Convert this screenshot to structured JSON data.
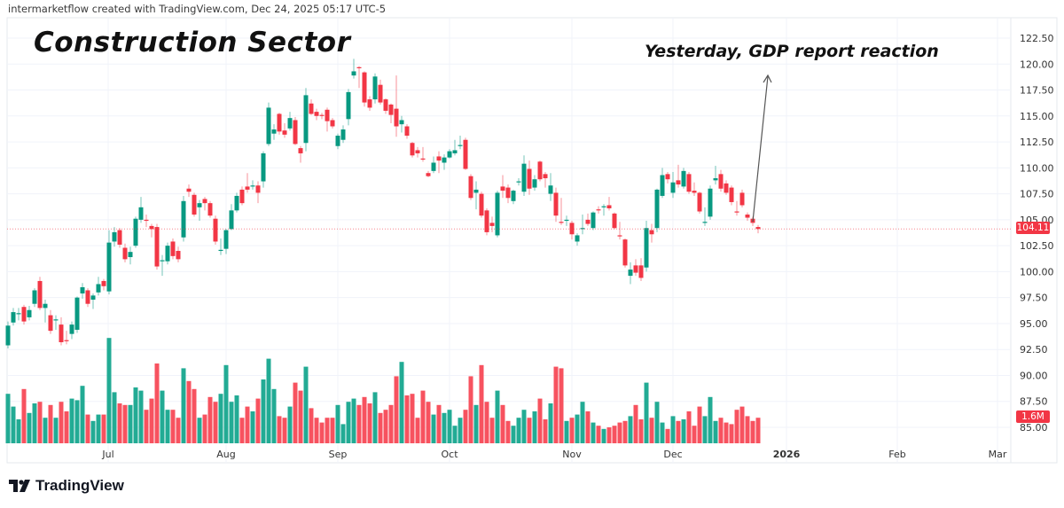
{
  "header": {
    "attribution": "intermarketflow created with TradingView.com, Dec 24, 2025 05:17 UTC-5"
  },
  "footer": {
    "logo_text": "TradingView"
  },
  "colors": {
    "up": "#089981",
    "down": "#f23645",
    "volume_up": "#22ab94",
    "volume_down": "#f7525f",
    "last_price_line": "#f23645",
    "annotation_arrow": "#555555"
  },
  "chart_data": {
    "type": "candlestick",
    "title": "Construction Sector",
    "annotation": "Yesterday, GDP report reaction",
    "last_price_label": "104.11",
    "last_volume_label": "1.6M",
    "ylim": [
      84,
      123
    ],
    "y_ticks": [
      "122.50",
      "120.00",
      "117.50",
      "115.00",
      "112.50",
      "110.00",
      "107.50",
      "105.00",
      "102.50",
      "100.00",
      "97.50",
      "95.00",
      "92.50",
      "90.00",
      "87.50",
      "85.00"
    ],
    "x_ticks": [
      "Jul",
      "Aug",
      "Sep",
      "Oct",
      "Nov",
      "Dec",
      "2026",
      "Feb",
      "Mar"
    ],
    "grid": true,
    "volume_unit": "M",
    "columns": [
      "date",
      "open",
      "high",
      "low",
      "close",
      "volume"
    ],
    "candles": [
      [
        "2025-06-03",
        92.9,
        95.2,
        92.6,
        94.8,
        3.1
      ],
      [
        "2025-06-04",
        95.1,
        96.5,
        94.8,
        96.1,
        2.3
      ],
      [
        "2025-06-05",
        95.9,
        96.5,
        95.3,
        96.0,
        1.5
      ],
      [
        "2025-06-06",
        96.6,
        96.8,
        94.9,
        95.2,
        3.4
      ],
      [
        "2025-06-09",
        95.6,
        96.7,
        95.3,
        96.3,
        1.9
      ],
      [
        "2025-06-10",
        96.9,
        98.4,
        96.6,
        98.2,
        2.5
      ],
      [
        "2025-06-11",
        99.1,
        99.5,
        96.3,
        96.5,
        2.6
      ],
      [
        "2025-06-12",
        96.5,
        97.3,
        95.1,
        96.9,
        1.6
      ],
      [
        "2025-06-13",
        95.8,
        96.3,
        94.0,
        94.3,
        2.4
      ],
      [
        "2025-06-16",
        95.3,
        95.8,
        94.4,
        95.4,
        1.6
      ],
      [
        "2025-06-17",
        94.9,
        95.6,
        92.9,
        93.2,
        2.6
      ],
      [
        "2025-06-18",
        93.4,
        94.3,
        93.0,
        93.3,
        2.0
      ],
      [
        "2025-06-20",
        94.0,
        95.2,
        93.5,
        94.9,
        2.8
      ],
      [
        "2025-06-23",
        94.4,
        97.6,
        94.1,
        97.5,
        2.7
      ],
      [
        "2025-06-24",
        97.9,
        98.9,
        97.4,
        98.5,
        3.6
      ],
      [
        "2025-06-25",
        98.2,
        98.4,
        96.6,
        96.9,
        1.8
      ],
      [
        "2025-06-26",
        97.3,
        97.9,
        96.4,
        97.7,
        1.4
      ],
      [
        "2025-06-27",
        98.0,
        99.5,
        97.7,
        98.8,
        1.8
      ],
      [
        "2025-06-30",
        99.1,
        99.3,
        98.2,
        98.6,
        1.8
      ],
      [
        "2025-07-01",
        98.1,
        104.0,
        97.8,
        102.8,
        6.6
      ],
      [
        "2025-07-02",
        102.9,
        104.3,
        102.4,
        103.8,
        3.2
      ],
      [
        "2025-07-03",
        104.0,
        104.2,
        102.3,
        102.6,
        2.5
      ],
      [
        "2025-07-07",
        102.3,
        102.7,
        100.9,
        101.2,
        2.4
      ],
      [
        "2025-07-08",
        101.4,
        102.4,
        100.7,
        101.9,
        2.4
      ],
      [
        "2025-07-09",
        102.5,
        105.3,
        102.3,
        105.1,
        3.5
      ],
      [
        "2025-07-10",
        105.0,
        107.2,
        104.7,
        106.2,
        3.3
      ],
      [
        "2025-07-11",
        105.0,
        105.5,
        104.3,
        104.9,
        2.1
      ],
      [
        "2025-07-14",
        104.4,
        104.6,
        103.3,
        104.1,
        2.8
      ],
      [
        "2025-07-15",
        104.3,
        104.6,
        100.2,
        100.5,
        5.0
      ],
      [
        "2025-07-16",
        101.0,
        101.6,
        99.6,
        101.1,
        3.3
      ],
      [
        "2025-07-17",
        101.0,
        102.8,
        100.7,
        102.5,
        2.1
      ],
      [
        "2025-07-18",
        102.9,
        103.2,
        101.2,
        101.5,
        2.1
      ],
      [
        "2025-07-21",
        102.0,
        102.4,
        100.9,
        101.2,
        1.6
      ],
      [
        "2025-07-22",
        103.3,
        107.3,
        102.9,
        106.8,
        4.7
      ],
      [
        "2025-07-23",
        108.0,
        108.4,
        107.2,
        107.7,
        3.9
      ],
      [
        "2025-07-24",
        107.4,
        107.6,
        105.3,
        105.5,
        3.4
      ],
      [
        "2025-07-25",
        106.2,
        106.9,
        104.9,
        106.6,
        1.6
      ],
      [
        "2025-07-28",
        107.0,
        107.2,
        105.9,
        106.6,
        1.8
      ],
      [
        "2025-07-29",
        106.6,
        106.8,
        105.2,
        105.4,
        2.9
      ],
      [
        "2025-07-30",
        105.1,
        105.4,
        102.6,
        102.9,
        2.6
      ],
      [
        "2025-07-31",
        102.0,
        103.2,
        101.6,
        102.1,
        3.1
      ],
      [
        "2025-08-01",
        102.2,
        104.1,
        101.7,
        104.0,
        4.9
      ],
      [
        "2025-08-04",
        104.1,
        106.5,
        104.0,
        105.9,
        2.6
      ],
      [
        "2025-08-05",
        105.9,
        107.6,
        105.7,
        107.3,
        3.0
      ],
      [
        "2025-08-06",
        107.9,
        108.2,
        106.4,
        106.6,
        1.6
      ],
      [
        "2025-08-07",
        108.2,
        109.5,
        107.6,
        107.9,
        2.3
      ],
      [
        "2025-08-08",
        108.2,
        108.8,
        107.9,
        108.3,
        2.0
      ],
      [
        "2025-08-11",
        108.3,
        108.7,
        106.6,
        107.6,
        2.8
      ],
      [
        "2025-08-12",
        108.7,
        111.6,
        108.1,
        111.4,
        4.0
      ],
      [
        "2025-08-13",
        112.3,
        116.3,
        112.1,
        115.8,
        5.3
      ],
      [
        "2025-08-14",
        113.3,
        114.2,
        112.7,
        113.7,
        3.4
      ],
      [
        "2025-08-15",
        115.2,
        115.3,
        113.2,
        113.5,
        1.7
      ],
      [
        "2025-08-18",
        113.6,
        114.3,
        112.9,
        113.2,
        1.6
      ],
      [
        "2025-08-19",
        113.8,
        115.4,
        113.6,
        114.8,
        2.3
      ],
      [
        "2025-08-20",
        114.6,
        114.9,
        112.2,
        112.3,
        3.8
      ],
      [
        "2025-08-21",
        111.9,
        112.1,
        110.5,
        111.4,
        3.3
      ],
      [
        "2025-08-22",
        112.4,
        117.7,
        111.6,
        117.0,
        4.8
      ],
      [
        "2025-08-25",
        116.2,
        116.6,
        115.1,
        115.2,
        2.2
      ],
      [
        "2025-08-26",
        115.4,
        115.7,
        114.6,
        115.0,
        1.6
      ],
      [
        "2025-08-27",
        115.1,
        115.3,
        114.7,
        115.0,
        1.3
      ],
      [
        "2025-08-28",
        115.6,
        115.8,
        113.5,
        114.5,
        1.6
      ],
      [
        "2025-08-29",
        114.6,
        114.8,
        113.8,
        114.0,
        1.6
      ],
      [
        "2025-09-02",
        112.1,
        113.3,
        111.8,
        113.1,
        2.4
      ],
      [
        "2025-09-03",
        112.7,
        114.1,
        112.4,
        113.7,
        1.2
      ],
      [
        "2025-09-04",
        114.7,
        117.6,
        114.1,
        117.3,
        2.6
      ],
      [
        "2025-09-05",
        118.9,
        120.5,
        118.6,
        119.3,
        2.8
      ],
      [
        "2025-09-08",
        119.7,
        119.8,
        117.7,
        119.6,
        2.4
      ],
      [
        "2025-09-09",
        119.2,
        119.3,
        115.9,
        116.3,
        2.9
      ],
      [
        "2025-09-10",
        116.6,
        116.9,
        115.5,
        115.8,
        2.5
      ],
      [
        "2025-09-11",
        116.6,
        119.1,
        116.2,
        118.8,
        3.2
      ],
      [
        "2025-09-12",
        118.0,
        118.5,
        116.1,
        116.3,
        1.9
      ],
      [
        "2025-09-15",
        116.6,
        116.7,
        115.2,
        115.5,
        2.1
      ],
      [
        "2025-09-16",
        116.1,
        116.2,
        114.3,
        115.1,
        2.4
      ],
      [
        "2025-09-17",
        115.7,
        118.9,
        113.0,
        114.0,
        4.2
      ],
      [
        "2025-09-18",
        114.2,
        115.0,
        113.4,
        114.6,
        5.1
      ],
      [
        "2025-09-19",
        114.0,
        114.2,
        112.8,
        113.1,
        3.0
      ],
      [
        "2025-09-22",
        112.4,
        112.5,
        111.0,
        111.2,
        3.1
      ],
      [
        "2025-09-23",
        111.7,
        112.0,
        111.0,
        111.4,
        1.6
      ],
      [
        "2025-09-24",
        110.9,
        112.0,
        110.6,
        110.8,
        3.3
      ],
      [
        "2025-09-25",
        109.5,
        109.7,
        109.1,
        109.2,
        2.6
      ],
      [
        "2025-09-26",
        109.7,
        111.1,
        109.5,
        110.5,
        1.8
      ],
      [
        "2025-09-29",
        111.1,
        111.6,
        109.5,
        110.7,
        2.4
      ],
      [
        "2025-09-30",
        110.5,
        111.3,
        109.8,
        111.0,
        1.9
      ],
      [
        "2025-10-01",
        111.0,
        111.8,
        110.9,
        111.6,
        2.1
      ],
      [
        "2025-10-02",
        111.4,
        112.7,
        111.2,
        111.7,
        1.1
      ],
      [
        "2025-10-03",
        112.1,
        113.1,
        111.8,
        112.2,
        1.6
      ],
      [
        "2025-10-06",
        112.7,
        112.9,
        109.8,
        109.9,
        2.1
      ],
      [
        "2025-10-07",
        109.2,
        109.4,
        106.9,
        107.1,
        4.2
      ],
      [
        "2025-10-08",
        107.6,
        108.7,
        106.0,
        107.9,
        2.4
      ],
      [
        "2025-10-09",
        107.5,
        107.7,
        105.2,
        105.4,
        4.9
      ],
      [
        "2025-10-10",
        105.9,
        106.1,
        103.5,
        103.8,
        2.6
      ],
      [
        "2025-10-13",
        104.7,
        105.3,
        103.8,
        104.4,
        1.6
      ],
      [
        "2025-10-14",
        103.5,
        107.8,
        103.3,
        107.6,
        3.3
      ],
      [
        "2025-10-15",
        108.2,
        109.3,
        107.1,
        107.8,
        2.4
      ],
      [
        "2025-10-16",
        108.1,
        108.4,
        106.6,
        107.1,
        1.4
      ],
      [
        "2025-10-17",
        106.8,
        107.9,
        106.5,
        107.8,
        1.1
      ],
      [
        "2025-10-20",
        108.6,
        109.0,
        108.3,
        108.7,
        1.6
      ],
      [
        "2025-10-21",
        107.7,
        111.2,
        107.3,
        110.4,
        2.1
      ],
      [
        "2025-10-22",
        109.9,
        110.7,
        107.4,
        108.0,
        1.6
      ],
      [
        "2025-10-23",
        108.1,
        109.3,
        107.8,
        108.9,
        2.0
      ],
      [
        "2025-10-24",
        110.6,
        110.7,
        108.7,
        108.9,
        2.8
      ],
      [
        "2025-10-27",
        109.4,
        109.6,
        108.1,
        109.0,
        1.5
      ],
      [
        "2025-10-28",
        107.5,
        109.5,
        106.8,
        108.3,
        2.5
      ],
      [
        "2025-10-29",
        107.6,
        108.1,
        104.8,
        105.4,
        4.8
      ],
      [
        "2025-10-30",
        104.8,
        107.1,
        104.5,
        104.7,
        4.7
      ],
      [
        "2025-10-31",
        104.9,
        105.4,
        104.4,
        105.0,
        1.4
      ],
      [
        "2025-11-03",
        104.7,
        104.9,
        103.1,
        103.6,
        1.6
      ],
      [
        "2025-11-04",
        102.9,
        103.7,
        102.5,
        103.5,
        1.8
      ],
      [
        "2025-11-05",
        104.1,
        105.5,
        103.6,
        104.2,
        2.6
      ],
      [
        "2025-11-06",
        105.0,
        105.6,
        104.4,
        104.6,
        2.0
      ],
      [
        "2025-11-07",
        104.2,
        105.8,
        104.0,
        105.7,
        1.3
      ],
      [
        "2025-11-10",
        106.0,
        106.3,
        105.6,
        105.9,
        1.1
      ],
      [
        "2025-11-11",
        106.2,
        106.5,
        105.4,
        106.3,
        0.9
      ],
      [
        "2025-11-12",
        106.4,
        107.2,
        105.9,
        106.1,
        1.0
      ],
      [
        "2025-11-13",
        105.6,
        105.7,
        104.1,
        104.2,
        1.1
      ],
      [
        "2025-11-14",
        103.5,
        104.8,
        103.1,
        103.4,
        1.3
      ],
      [
        "2025-11-17",
        103.1,
        103.2,
        100.4,
        100.6,
        1.4
      ],
      [
        "2025-11-18",
        99.6,
        100.9,
        98.8,
        100.2,
        1.7
      ],
      [
        "2025-11-19",
        100.6,
        101.2,
        99.6,
        99.9,
        2.4
      ],
      [
        "2025-11-20",
        100.6,
        101.3,
        99.1,
        99.4,
        1.5
      ],
      [
        "2025-11-21",
        100.4,
        104.9,
        100.0,
        104.2,
        3.8
      ],
      [
        "2025-11-24",
        104.0,
        104.6,
        102.8,
        103.6,
        1.6
      ],
      [
        "2025-11-25",
        104.2,
        108.0,
        103.8,
        107.9,
        2.6
      ],
      [
        "2025-11-26",
        107.3,
        110.0,
        107.1,
        109.3,
        1.3
      ],
      [
        "2025-11-28",
        109.4,
        109.6,
        108.5,
        108.9,
        0.9
      ],
      [
        "2025-12-01",
        107.6,
        109.6,
        107.1,
        108.6,
        1.7
      ],
      [
        "2025-12-02",
        108.8,
        110.3,
        108.1,
        108.4,
        1.4
      ],
      [
        "2025-12-03",
        108.2,
        110.0,
        108.0,
        109.7,
        1.5
      ],
      [
        "2025-12-04",
        109.4,
        109.6,
        107.5,
        107.7,
        2.0
      ],
      [
        "2025-12-05",
        107.8,
        108.6,
        107.3,
        107.6,
        1.1
      ],
      [
        "2025-12-08",
        107.6,
        107.7,
        105.6,
        105.8,
        2.3
      ],
      [
        "2025-12-09",
        104.7,
        106.2,
        104.4,
        104.8,
        1.7
      ],
      [
        "2025-12-10",
        105.3,
        108.3,
        105.0,
        108.0,
        2.9
      ],
      [
        "2025-12-11",
        108.8,
        110.2,
        108.4,
        109.0,
        1.4
      ],
      [
        "2025-12-12",
        109.4,
        109.8,
        107.7,
        108.0,
        1.6
      ],
      [
        "2025-12-15",
        108.5,
        108.8,
        107.4,
        107.6,
        1.3
      ],
      [
        "2025-12-16",
        108.1,
        108.3,
        106.4,
        106.7,
        1.2
      ],
      [
        "2025-12-17",
        105.8,
        106.8,
        105.4,
        105.7,
        2.1
      ],
      [
        "2025-12-18",
        107.6,
        107.9,
        106.2,
        106.4,
        2.3
      ],
      [
        "2025-12-19",
        105.5,
        105.7,
        104.9,
        105.2,
        1.7
      ],
      [
        "2025-12-22",
        105.1,
        105.3,
        104.4,
        104.7,
        1.4
      ],
      [
        "2025-12-23",
        104.3,
        104.5,
        103.7,
        104.11,
        1.6
      ]
    ]
  }
}
